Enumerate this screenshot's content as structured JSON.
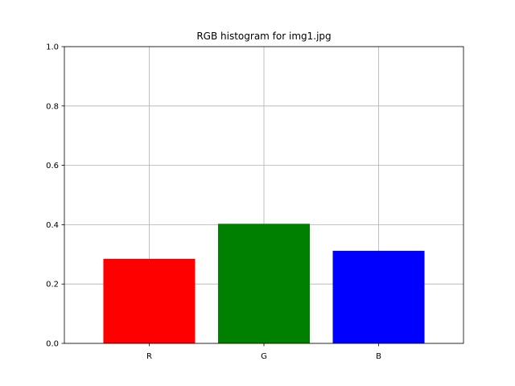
{
  "chart_data": {
    "type": "bar",
    "title": "RGB histogram for img1.jpg",
    "xlabel": "",
    "ylabel": "",
    "categories": [
      "R",
      "G",
      "B"
    ],
    "values": [
      0.285,
      0.403,
      0.312
    ],
    "colors": [
      "#ff0000",
      "#008000",
      "#0000ff"
    ],
    "ylim": [
      0,
      1.0
    ],
    "yticks": [
      "0.0",
      "0.2",
      "0.4",
      "0.6",
      "0.8",
      "1.0"
    ],
    "grid": true,
    "legend": "none"
  }
}
